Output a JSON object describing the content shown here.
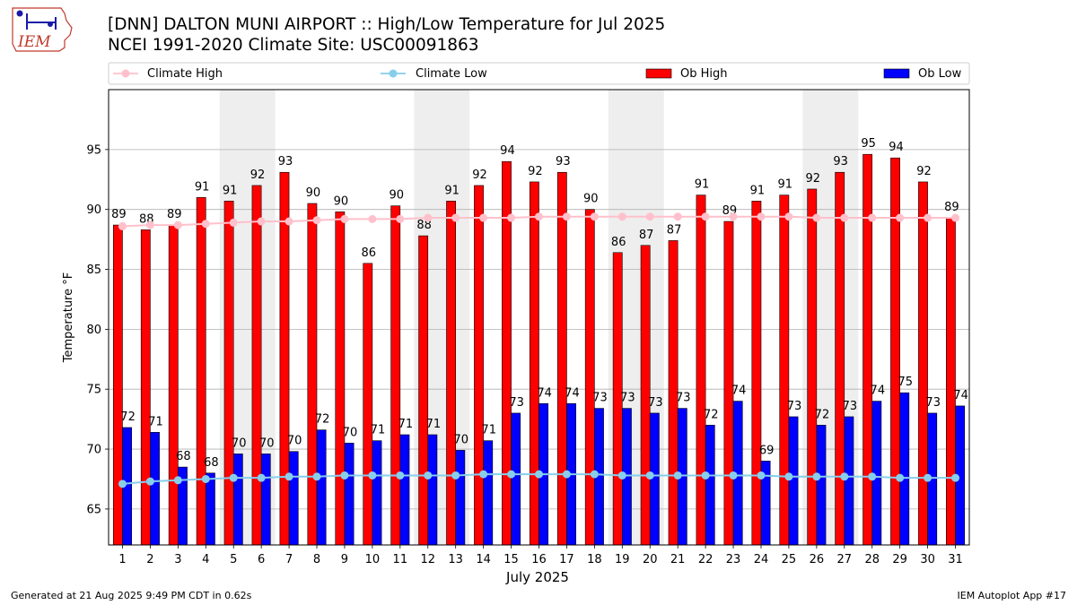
{
  "header": {
    "title_line1": "[DNN] DALTON MUNI AIRPORT :: High/Low Temperature for Jul 2025",
    "title_line2": "NCEI 1991-2020 Climate Site: USC00091863",
    "logo_text": "IEM"
  },
  "footer": {
    "generated": "Generated at 21 Aug 2025 9:49 PM CDT in 0.62s",
    "app": "IEM Autoplot App #17"
  },
  "colors": {
    "ob_high": "#ff0000",
    "ob_low": "#0000ff",
    "climate_high": "#ffc0cb",
    "climate_low": "#87ceeb",
    "weekend_shade": "#eeeeee",
    "grid": "#b0b0b0"
  },
  "chart_data": {
    "type": "bar",
    "xlabel": "July 2025",
    "ylabel": "Temperature °F",
    "ylim": [
      62,
      100
    ],
    "yticks": [
      65,
      70,
      75,
      80,
      85,
      90,
      95
    ],
    "grid": "horizontal",
    "legend_placement": "top",
    "categories": [
      "1",
      "2",
      "3",
      "4",
      "5",
      "6",
      "7",
      "8",
      "9",
      "10",
      "11",
      "12",
      "13",
      "14",
      "15",
      "16",
      "17",
      "18",
      "19",
      "20",
      "21",
      "22",
      "23",
      "24",
      "25",
      "26",
      "27",
      "28",
      "29",
      "30",
      "31"
    ],
    "weekend_shaded_days": [
      [
        5,
        6
      ],
      [
        12,
        13
      ],
      [
        19,
        20
      ],
      [
        26,
        27
      ]
    ],
    "series": [
      {
        "name": "Ob High",
        "kind": "bar",
        "values": [
          88.7,
          88.3,
          88.7,
          91.0,
          90.7,
          92.0,
          93.1,
          90.5,
          89.8,
          85.5,
          90.3,
          87.8,
          90.7,
          92.0,
          94.0,
          92.3,
          93.1,
          90.0,
          86.4,
          87.0,
          87.4,
          91.2,
          89.0,
          90.7,
          91.2,
          91.7,
          93.1,
          94.6,
          94.3,
          92.3,
          89.3
        ],
        "labels": [
          "89",
          "88",
          "89",
          "91",
          "91",
          "92",
          "93",
          "90",
          "90",
          "86",
          "90",
          "88",
          "91",
          "92",
          "94",
          "92",
          "93",
          "90",
          "86",
          "87",
          "87",
          "91",
          "89",
          "91",
          "91",
          "92",
          "93",
          "95",
          "94",
          "92",
          "89"
        ]
      },
      {
        "name": "Ob Low",
        "kind": "bar",
        "values": [
          71.8,
          71.4,
          68.5,
          68.0,
          69.6,
          69.6,
          69.8,
          71.6,
          70.5,
          70.7,
          71.2,
          71.2,
          69.9,
          70.7,
          73.0,
          73.8,
          73.8,
          73.4,
          73.4,
          73.0,
          73.4,
          72.0,
          74.0,
          69.0,
          72.7,
          72.0,
          72.7,
          74.0,
          74.7,
          73.0,
          73.6
        ],
        "labels": [
          "72",
          "71",
          "68",
          "68",
          "70",
          "70",
          "70",
          "72",
          "70",
          "71",
          "71",
          "71",
          "70",
          "71",
          "73",
          "74",
          "74",
          "73",
          "73",
          "73",
          "73",
          "72",
          "74",
          "69",
          "73",
          "72",
          "73",
          "74",
          "75",
          "73",
          "74"
        ]
      },
      {
        "name": "Climate High",
        "kind": "line",
        "values": [
          88.6,
          88.7,
          88.7,
          88.8,
          88.9,
          89.0,
          89.0,
          89.1,
          89.2,
          89.2,
          89.2,
          89.3,
          89.3,
          89.3,
          89.3,
          89.4,
          89.4,
          89.4,
          89.4,
          89.4,
          89.4,
          89.4,
          89.4,
          89.4,
          89.4,
          89.3,
          89.3,
          89.3,
          89.3,
          89.3,
          89.3
        ]
      },
      {
        "name": "Climate Low",
        "kind": "line",
        "values": [
          67.1,
          67.3,
          67.4,
          67.5,
          67.6,
          67.6,
          67.7,
          67.7,
          67.8,
          67.8,
          67.8,
          67.8,
          67.8,
          67.9,
          67.9,
          67.9,
          67.9,
          67.9,
          67.8,
          67.8,
          67.8,
          67.8,
          67.8,
          67.8,
          67.7,
          67.7,
          67.7,
          67.7,
          67.6,
          67.6,
          67.6
        ]
      }
    ]
  }
}
